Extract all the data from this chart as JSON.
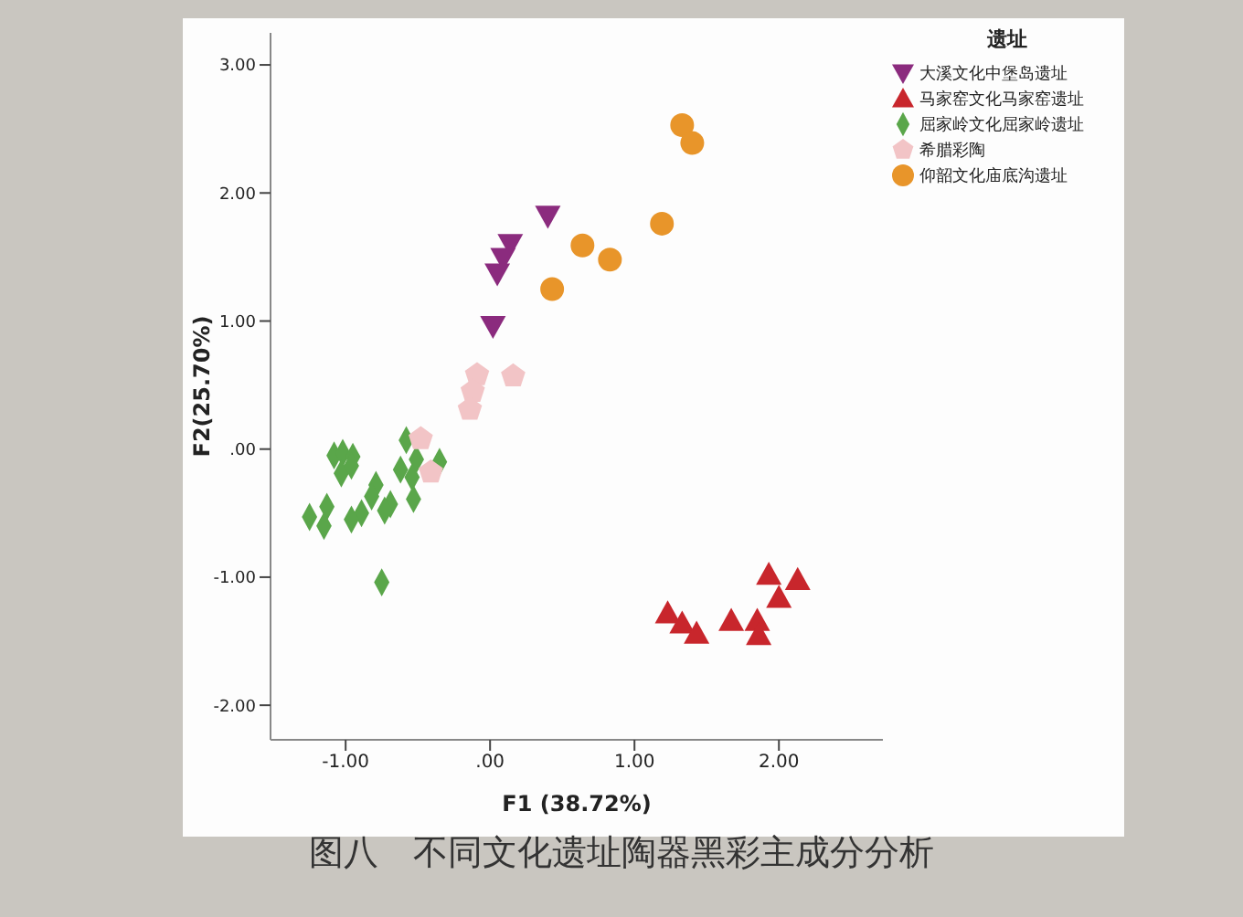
{
  "chart_data": {
    "type": "scatter",
    "xlabel": "F1 (38.72%)",
    "ylabel": "F2(25.70%)",
    "legend_title": "遗址",
    "annotations": [
      "图八　不同文化遗址陶器黑彩主成分分析"
    ],
    "xlim": [
      -1.52,
      2.72
    ],
    "ylim": [
      -2.27,
      3.25
    ],
    "xticks": [
      {
        "value": -1,
        "label": "-1.00"
      },
      {
        "value": 0,
        "label": ".00"
      },
      {
        "value": 1,
        "label": "1.00"
      },
      {
        "value": 2,
        "label": "2.00"
      }
    ],
    "yticks": [
      {
        "value": -2,
        "label": "-2.00"
      },
      {
        "value": -1,
        "label": "-1.00"
      },
      {
        "value": 0,
        "label": ".00"
      },
      {
        "value": 1,
        "label": "1.00"
      },
      {
        "value": 2,
        "label": "2.00"
      },
      {
        "value": 3,
        "label": "3.00"
      }
    ],
    "grid": false,
    "legend": "right",
    "series": [
      {
        "name": "大溪文化中堡岛遗址",
        "color": "#8b2b7e",
        "marker": "triangle-down",
        "x": [
          0.4,
          0.14,
          0.09,
          0.05,
          0.02
        ],
        "values": [
          1.82,
          1.6,
          1.49,
          1.37,
          0.96
        ]
      },
      {
        "name": "马家窑文化马家窑遗址",
        "color": "#c8262c",
        "marker": "triangle",
        "x": [
          1.93,
          2.13,
          2.0,
          1.23,
          1.33,
          1.43,
          1.67,
          1.85,
          1.86
        ],
        "values": [
          -0.98,
          -1.02,
          -1.16,
          -1.28,
          -1.36,
          -1.44,
          -1.34,
          -1.34,
          -1.45
        ]
      },
      {
        "name": "屈家岭文化屈家岭遗址",
        "color": "#5aa64a",
        "marker": "diamond",
        "x": [
          -1.08,
          -1.02,
          -0.95,
          -1.03,
          -0.96,
          -0.58,
          -0.51,
          -0.62,
          -0.54,
          -0.35,
          -0.79,
          -0.82,
          -0.53,
          -0.69,
          -0.73,
          -1.13,
          -1.25,
          -1.15,
          -0.89,
          -0.96,
          -0.75
        ],
        "values": [
          -0.05,
          -0.03,
          -0.06,
          -0.19,
          -0.13,
          0.07,
          -0.08,
          -0.16,
          -0.22,
          -0.1,
          -0.28,
          -0.37,
          -0.39,
          -0.43,
          -0.48,
          -0.45,
          -0.53,
          -0.6,
          -0.5,
          -0.55,
          -1.04
        ]
      },
      {
        "name": "希腊彩陶",
        "color": "#f2c4c6",
        "x": [
          -0.09,
          0.16,
          -0.12,
          -0.14,
          -0.48,
          -0.41
        ],
        "values": [
          0.58,
          0.57,
          0.45,
          0.31,
          0.08,
          -0.18
        ]
      },
      {
        "name": "仰韶文化庙底沟遗址",
        "color": "#e8952a",
        "marker": "circle",
        "x": [
          1.33,
          1.4,
          1.19,
          0.64,
          0.83,
          0.43
        ],
        "values": [
          2.53,
          2.39,
          1.76,
          1.59,
          1.48,
          1.25
        ]
      }
    ]
  }
}
